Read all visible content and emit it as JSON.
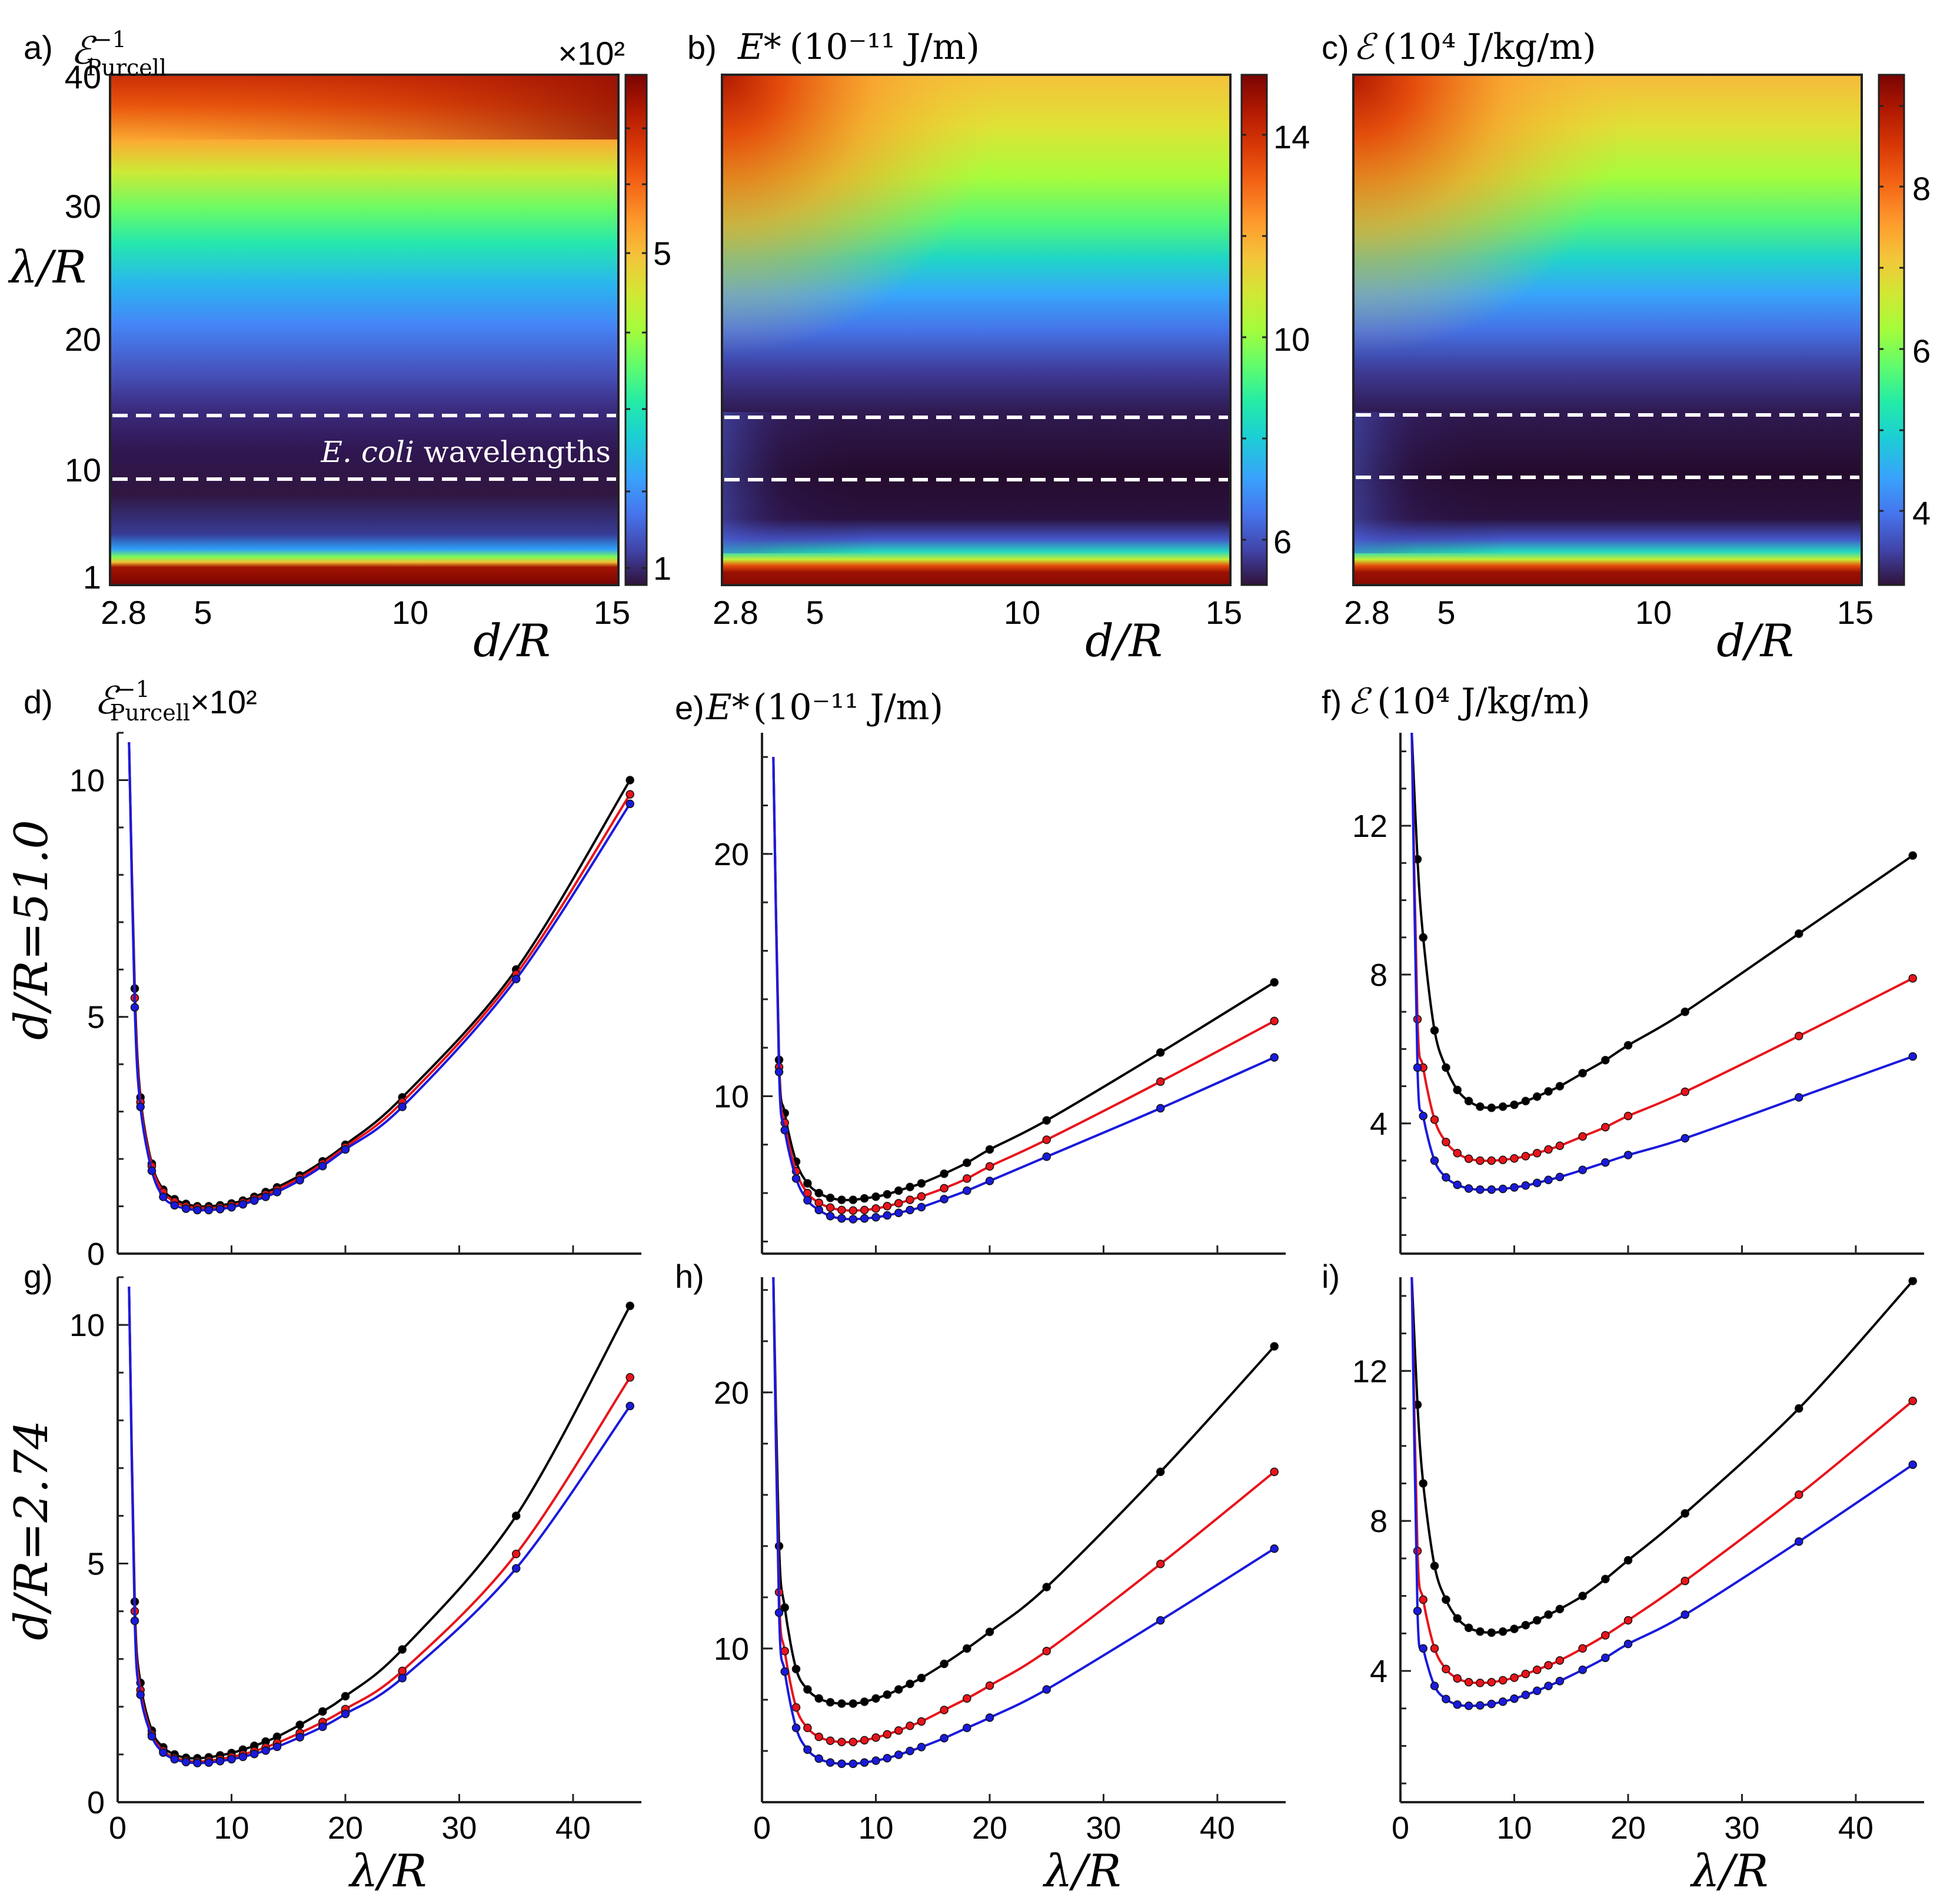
{
  "figure": {
    "heatmaps": [
      {
        "id": "a",
        "label": "a)",
        "title": "ℰ⁻¹ Purcell",
        "title_main": "ℰ",
        "title_sup": "−1",
        "title_sub": "Purcell",
        "multiplier": "×10²",
        "y_label": "λ/R",
        "x_label": "d/R",
        "x_ticks": [
          "2.8",
          "5",
          "10",
          "15"
        ],
        "y_ticks": [
          "1",
          "10",
          "20",
          "30",
          "40"
        ],
        "colorbar_ticks": [
          "1",
          "5"
        ],
        "annotation": "E. coli wavelengths",
        "annotation_italic": "E. coli",
        "annotation_rest": " wavelengths"
      },
      {
        "id": "b",
        "label": "b)",
        "title": "E* (10⁻¹¹ J/m)",
        "title_main": "E*",
        "title_unit": "(10⁻¹¹ J/m)",
        "x_label": "d/R",
        "x_ticks": [
          "2.8",
          "5",
          "10",
          "15"
        ],
        "colorbar_ticks": [
          "6",
          "10",
          "14"
        ]
      },
      {
        "id": "c",
        "label": "c)",
        "title": "ℰ (10⁴ J/kg/m)",
        "title_main": "ℰ",
        "title_unit": "(10⁴ J/kg/m)",
        "x_label": "d/R",
        "x_ticks": [
          "2.8",
          "5",
          "10",
          "15"
        ],
        "colorbar_ticks": [
          "4",
          "6",
          "8"
        ]
      }
    ],
    "row_labels": {
      "top": "d/R=51.0",
      "bottom": "d/R=2.74"
    },
    "x_axis_label": "λ/R",
    "line_panel_titles": {
      "d": {
        "label": "d)",
        "main": "ℰ",
        "sup": "−1",
        "sub": "Purcell",
        "suffix": "×10²"
      },
      "e": {
        "label": "e)",
        "main": "E*",
        "unit": "(10⁻¹¹ J/m)"
      },
      "f": {
        "label": "f)",
        "main": "ℰ",
        "unit": "(10⁴ J/kg/m)"
      },
      "g": {
        "label": "g)"
      },
      "h": {
        "label": "h)"
      },
      "i": {
        "label": "i)"
      }
    },
    "colors": {
      "black": "#000000",
      "red": "#e8141b",
      "blue": "#1a1adc",
      "dash": "#ffffff"
    }
  },
  "chart_data": [
    {
      "id": "a",
      "type": "heatmap",
      "xlabel": "d/R",
      "ylabel": "λ/R",
      "xlim": [
        2.8,
        15
      ],
      "ylim": [
        1,
        40
      ],
      "colorbar": {
        "min": 0.8,
        "max": 8.0,
        "ticks": [
          1,
          5
        ]
      },
      "dashed_lines_y": [
        9,
        14
      ]
    },
    {
      "id": "b",
      "type": "heatmap",
      "xlabel": "d/R",
      "ylabel": "λ/R",
      "xlim": [
        2.8,
        15
      ],
      "ylim": [
        1,
        40
      ],
      "colorbar": {
        "min": 5.0,
        "max": 15.2,
        "ticks": [
          6,
          10,
          14
        ]
      },
      "dashed_lines_y": [
        9,
        14
      ]
    },
    {
      "id": "c",
      "type": "heatmap",
      "xlabel": "d/R",
      "ylabel": "λ/R",
      "xlim": [
        2.8,
        15
      ],
      "ylim": [
        1,
        40
      ],
      "colorbar": {
        "min": 3.0,
        "max": 9.3,
        "ticks": [
          4,
          6,
          8
        ]
      },
      "dashed_lines_y": [
        9,
        14
      ]
    },
    {
      "id": "d",
      "type": "line",
      "xlim": [
        0,
        46
      ],
      "ylim": [
        0,
        11
      ],
      "yticks": [
        0,
        5,
        10
      ],
      "xticks": [
        0,
        10,
        20,
        30,
        40
      ],
      "series": [
        {
          "name": "black",
          "x": [
            1,
            1.5,
            2,
            3,
            4,
            5,
            6,
            7,
            8,
            9,
            10,
            11,
            12,
            13,
            14,
            16,
            18,
            20,
            25,
            35,
            45
          ],
          "y": [
            10.8,
            5.6,
            3.3,
            1.9,
            1.35,
            1.15,
            1.05,
            1.0,
            1.0,
            1.02,
            1.06,
            1.12,
            1.2,
            1.3,
            1.4,
            1.65,
            1.95,
            2.3,
            3.3,
            6.0,
            10.0
          ]
        },
        {
          "name": "red",
          "x": [
            1,
            1.5,
            2,
            3,
            4,
            5,
            6,
            7,
            8,
            9,
            10,
            11,
            12,
            13,
            14,
            16,
            18,
            20,
            25,
            35,
            45
          ],
          "y": [
            10.8,
            5.4,
            3.2,
            1.85,
            1.3,
            1.1,
            1.0,
            0.97,
            0.96,
            0.98,
            1.02,
            1.08,
            1.16,
            1.25,
            1.35,
            1.6,
            1.9,
            2.25,
            3.2,
            5.9,
            9.7
          ]
        },
        {
          "name": "blue",
          "x": [
            1,
            1.5,
            2,
            3,
            4,
            5,
            6,
            7,
            8,
            9,
            10,
            11,
            12,
            13,
            14,
            16,
            18,
            20,
            25,
            35,
            45
          ],
          "y": [
            10.8,
            5.2,
            3.1,
            1.75,
            1.2,
            1.02,
            0.95,
            0.92,
            0.92,
            0.94,
            0.98,
            1.04,
            1.12,
            1.2,
            1.3,
            1.55,
            1.85,
            2.2,
            3.1,
            5.8,
            9.5
          ]
        }
      ]
    },
    {
      "id": "e",
      "type": "line",
      "xlim": [
        0,
        46
      ],
      "ylim": [
        3.5,
        25
      ],
      "yticks": [
        10,
        20
      ],
      "xticks": [
        0,
        10,
        20,
        30,
        40
      ],
      "series": [
        {
          "name": "black",
          "x": [
            1,
            1.5,
            2,
            3,
            4,
            5,
            6,
            7,
            8,
            9,
            10,
            11,
            12,
            13,
            14,
            16,
            18,
            20,
            25,
            35,
            45
          ],
          "y": [
            24,
            11.5,
            9.3,
            7.3,
            6.4,
            6.0,
            5.8,
            5.72,
            5.72,
            5.78,
            5.85,
            5.95,
            6.1,
            6.25,
            6.4,
            6.8,
            7.25,
            7.8,
            9.0,
            11.8,
            14.7
          ]
        },
        {
          "name": "red",
          "x": [
            1,
            1.5,
            2,
            3,
            4,
            5,
            6,
            7,
            8,
            9,
            10,
            11,
            12,
            13,
            14,
            16,
            18,
            20,
            25,
            35,
            45
          ],
          "y": [
            24,
            11.2,
            8.9,
            6.9,
            6.0,
            5.6,
            5.4,
            5.3,
            5.28,
            5.3,
            5.36,
            5.46,
            5.58,
            5.72,
            5.86,
            6.2,
            6.6,
            7.1,
            8.2,
            10.6,
            13.1
          ]
        },
        {
          "name": "blue",
          "x": [
            1,
            1.5,
            2,
            3,
            4,
            5,
            6,
            7,
            8,
            9,
            10,
            11,
            12,
            13,
            14,
            16,
            18,
            20,
            25,
            35,
            45
          ],
          "y": [
            24,
            11.0,
            8.6,
            6.6,
            5.7,
            5.3,
            5.05,
            4.95,
            4.92,
            4.95,
            5.0,
            5.08,
            5.18,
            5.3,
            5.42,
            5.75,
            6.1,
            6.5,
            7.5,
            9.5,
            11.6
          ]
        }
      ]
    },
    {
      "id": "f",
      "type": "line",
      "xlim": [
        0,
        46
      ],
      "ylim": [
        0.5,
        14.5
      ],
      "yticks": [
        4,
        8,
        12
      ],
      "xticks": [
        0,
        10,
        20,
        30,
        40
      ],
      "series": [
        {
          "name": "black",
          "x": [
            1,
            1.5,
            2,
            3,
            4,
            5,
            6,
            7,
            8,
            9,
            10,
            11,
            12,
            13,
            14,
            16,
            18,
            20,
            25,
            35,
            45
          ],
          "y": [
            14.5,
            11.1,
            9.0,
            6.5,
            5.5,
            4.9,
            4.6,
            4.45,
            4.42,
            4.45,
            4.5,
            4.6,
            4.72,
            4.86,
            5.0,
            5.35,
            5.7,
            6.1,
            7.0,
            9.1,
            11.2
          ]
        },
        {
          "name": "red",
          "x": [
            1,
            1.5,
            2,
            3,
            4,
            5,
            6,
            7,
            8,
            9,
            10,
            11,
            12,
            13,
            14,
            16,
            18,
            20,
            25,
            35,
            45
          ],
          "y": [
            14.5,
            6.8,
            5.5,
            4.1,
            3.5,
            3.2,
            3.05,
            3.0,
            3.0,
            3.02,
            3.06,
            3.12,
            3.2,
            3.3,
            3.4,
            3.65,
            3.9,
            4.2,
            4.85,
            6.35,
            7.9
          ]
        },
        {
          "name": "blue",
          "x": [
            1,
            1.5,
            2,
            3,
            4,
            5,
            6,
            7,
            8,
            9,
            10,
            11,
            12,
            13,
            14,
            16,
            18,
            20,
            25,
            35,
            45
          ],
          "y": [
            14.5,
            5.5,
            4.2,
            3.0,
            2.55,
            2.35,
            2.25,
            2.22,
            2.22,
            2.24,
            2.28,
            2.33,
            2.4,
            2.48,
            2.56,
            2.75,
            2.95,
            3.15,
            3.6,
            4.7,
            5.8
          ]
        }
      ]
    },
    {
      "id": "g",
      "type": "line",
      "xlim": [
        0,
        46
      ],
      "ylim": [
        0,
        11
      ],
      "yticks": [
        0,
        5,
        10
      ],
      "xticks": [
        0,
        10,
        20,
        30,
        40
      ],
      "series": [
        {
          "name": "black",
          "x": [
            1,
            1.5,
            2,
            3,
            4,
            5,
            6,
            7,
            8,
            9,
            10,
            11,
            12,
            13,
            14,
            16,
            18,
            20,
            25,
            35,
            45
          ],
          "y": [
            10.8,
            4.2,
            2.5,
            1.5,
            1.15,
            1.0,
            0.93,
            0.92,
            0.94,
            0.98,
            1.03,
            1.1,
            1.18,
            1.27,
            1.37,
            1.62,
            1.9,
            2.22,
            3.2,
            6.0,
            10.4
          ]
        },
        {
          "name": "red",
          "x": [
            1,
            1.5,
            2,
            3,
            4,
            5,
            6,
            7,
            8,
            9,
            10,
            11,
            12,
            13,
            14,
            16,
            18,
            20,
            25,
            35,
            45
          ],
          "y": [
            10.8,
            4.0,
            2.35,
            1.42,
            1.08,
            0.93,
            0.87,
            0.85,
            0.87,
            0.9,
            0.95,
            1.0,
            1.07,
            1.15,
            1.24,
            1.45,
            1.68,
            1.95,
            2.75,
            5.2,
            8.9
          ]
        },
        {
          "name": "blue",
          "x": [
            1,
            1.5,
            2,
            3,
            4,
            5,
            6,
            7,
            8,
            9,
            10,
            11,
            12,
            13,
            14,
            16,
            18,
            20,
            25,
            35,
            45
          ],
          "y": [
            10.8,
            3.8,
            2.25,
            1.38,
            1.04,
            0.9,
            0.84,
            0.82,
            0.83,
            0.86,
            0.9,
            0.95,
            1.01,
            1.08,
            1.16,
            1.36,
            1.58,
            1.85,
            2.6,
            4.9,
            8.3
          ]
        }
      ]
    },
    {
      "id": "h",
      "type": "line",
      "xlim": [
        0,
        46
      ],
      "ylim": [
        4,
        24.5
      ],
      "yticks": [
        10,
        20
      ],
      "xticks": [
        0,
        10,
        20,
        30,
        40
      ],
      "series": [
        {
          "name": "black",
          "x": [
            1,
            1.5,
            2,
            3,
            4,
            5,
            6,
            7,
            8,
            9,
            10,
            11,
            12,
            13,
            14,
            16,
            18,
            20,
            25,
            35,
            45
          ],
          "y": [
            24.5,
            14.0,
            11.6,
            9.2,
            8.4,
            8.05,
            7.9,
            7.85,
            7.85,
            7.92,
            8.05,
            8.2,
            8.4,
            8.62,
            8.85,
            9.4,
            10.0,
            10.65,
            12.4,
            16.9,
            21.8
          ]
        },
        {
          "name": "red",
          "x": [
            1,
            1.5,
            2,
            3,
            4,
            5,
            6,
            7,
            8,
            9,
            10,
            11,
            12,
            13,
            14,
            16,
            18,
            20,
            25,
            35,
            45
          ],
          "y": [
            24.5,
            12.2,
            9.9,
            7.7,
            6.9,
            6.55,
            6.4,
            6.35,
            6.35,
            6.42,
            6.52,
            6.65,
            6.8,
            6.98,
            7.15,
            7.6,
            8.05,
            8.55,
            9.9,
            13.3,
            16.9
          ]
        },
        {
          "name": "blue",
          "x": [
            1,
            1.5,
            2,
            3,
            4,
            5,
            6,
            7,
            8,
            9,
            10,
            11,
            12,
            13,
            14,
            16,
            18,
            20,
            25,
            35,
            45
          ],
          "y": [
            24.5,
            11.4,
            9.1,
            6.9,
            6.05,
            5.7,
            5.55,
            5.5,
            5.5,
            5.55,
            5.62,
            5.72,
            5.85,
            6.0,
            6.15,
            6.5,
            6.9,
            7.3,
            8.4,
            11.1,
            13.9
          ]
        }
      ]
    },
    {
      "id": "i",
      "type": "line",
      "xlim": [
        0,
        46
      ],
      "ylim": [
        0.5,
        14.5
      ],
      "yticks": [
        4,
        8,
        12
      ],
      "xticks": [
        0,
        10,
        20,
        30,
        40
      ],
      "series": [
        {
          "name": "black",
          "x": [
            1,
            1.5,
            2,
            3,
            4,
            5,
            6,
            7,
            8,
            9,
            10,
            11,
            12,
            13,
            14,
            16,
            18,
            20,
            25,
            35,
            45
          ],
          "y": [
            14.5,
            11.1,
            9.0,
            6.8,
            5.9,
            5.4,
            5.15,
            5.05,
            5.02,
            5.05,
            5.12,
            5.22,
            5.35,
            5.5,
            5.65,
            6.0,
            6.45,
            6.95,
            8.2,
            11.0,
            14.4
          ]
        },
        {
          "name": "red",
          "x": [
            1,
            1.5,
            2,
            3,
            4,
            5,
            6,
            7,
            8,
            9,
            10,
            11,
            12,
            13,
            14,
            16,
            18,
            20,
            25,
            35,
            45
          ],
          "y": [
            14.5,
            7.2,
            5.9,
            4.6,
            4.05,
            3.8,
            3.7,
            3.68,
            3.7,
            3.75,
            3.82,
            3.92,
            4.03,
            4.15,
            4.28,
            4.6,
            4.95,
            5.35,
            6.4,
            8.7,
            11.2
          ]
        },
        {
          "name": "blue",
          "x": [
            1,
            1.5,
            2,
            3,
            4,
            5,
            6,
            7,
            8,
            9,
            10,
            11,
            12,
            13,
            14,
            16,
            18,
            20,
            25,
            35,
            45
          ],
          "y": [
            14.5,
            5.6,
            4.6,
            3.6,
            3.25,
            3.1,
            3.07,
            3.08,
            3.12,
            3.18,
            3.26,
            3.36,
            3.47,
            3.6,
            3.73,
            4.03,
            4.35,
            4.72,
            5.5,
            7.45,
            9.5
          ]
        }
      ]
    }
  ]
}
